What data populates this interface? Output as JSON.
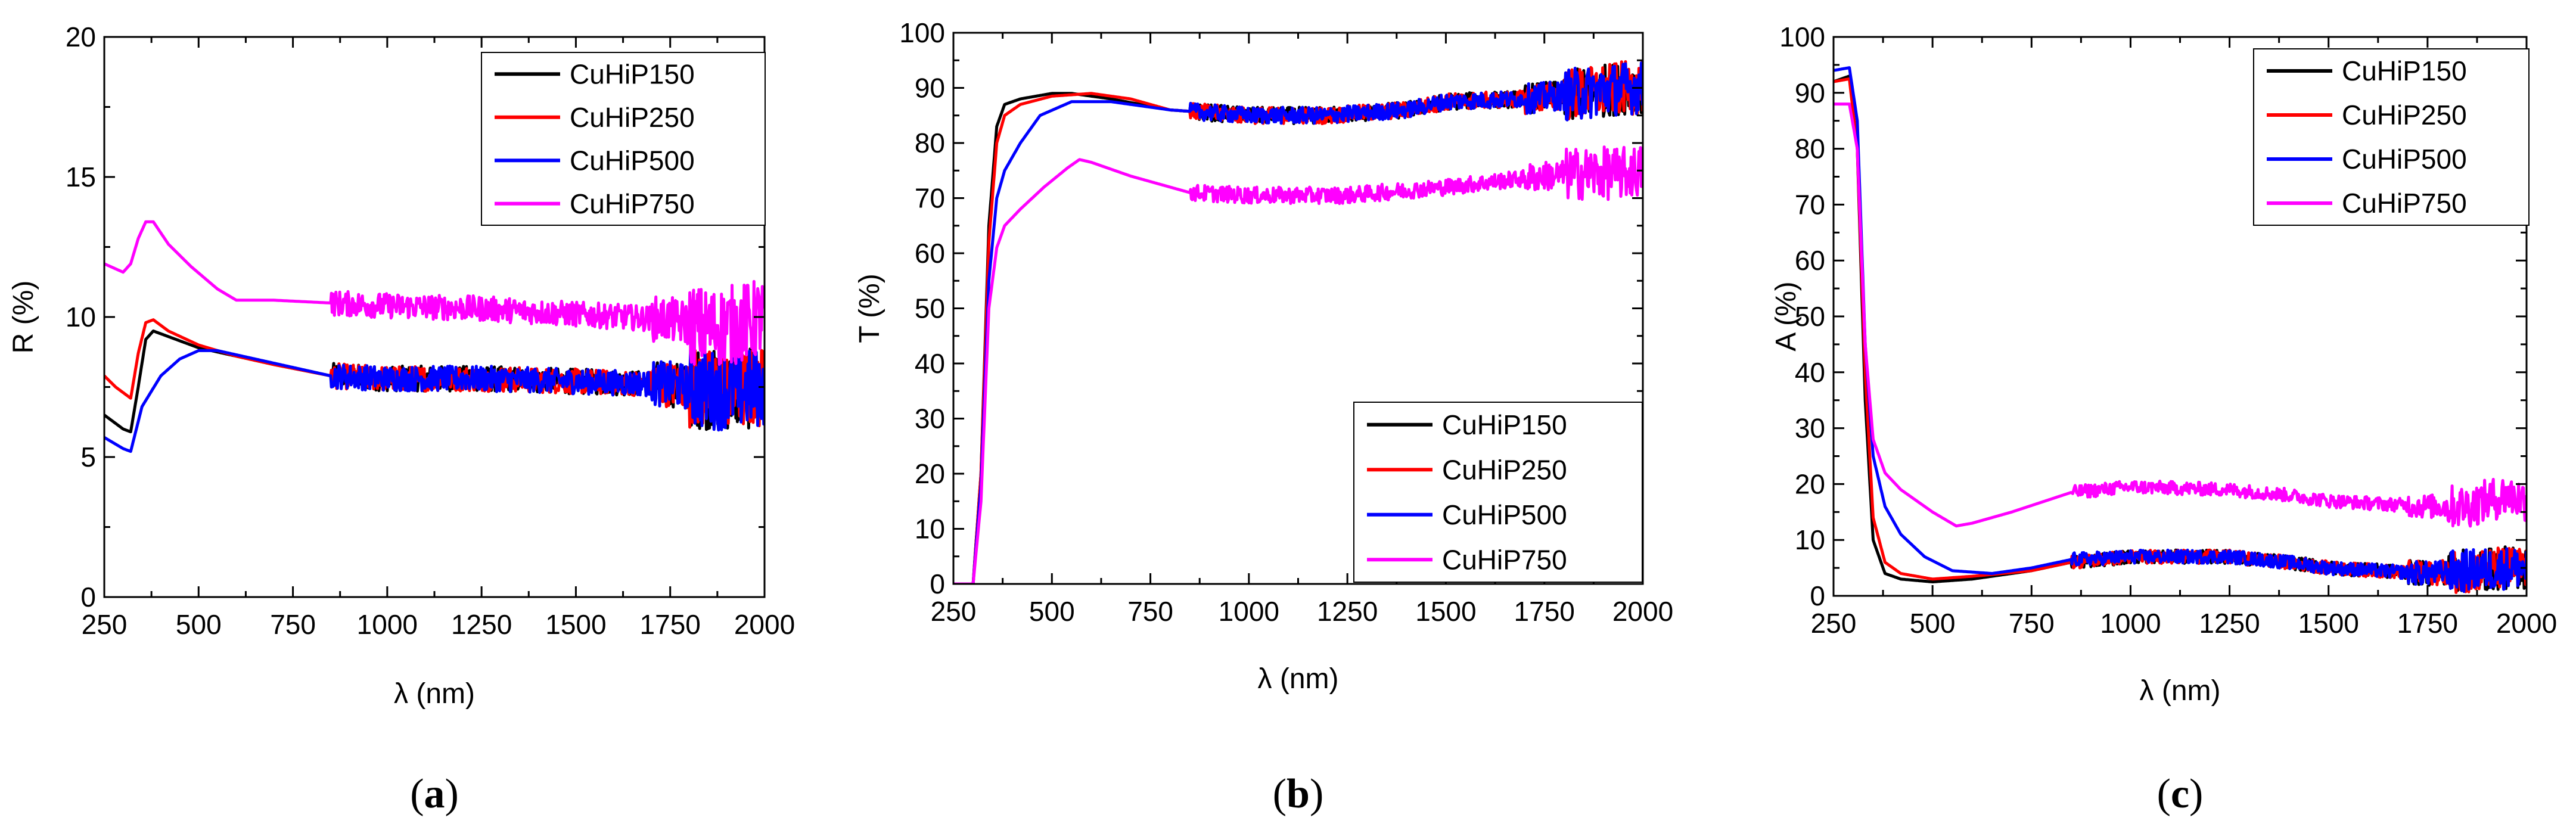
{
  "series_colors": {
    "CuHiP150": "#000000",
    "CuHiP250": "#ff0000",
    "CuHiP500": "#0000ff",
    "CuHiP750": "#ff00ff"
  },
  "chart_data": [
    {
      "id": "a",
      "type": "line",
      "panel_label": "(a)",
      "title": "",
      "xlabel": "λ (nm)",
      "ylabel": "R (%)",
      "xlim": [
        250,
        2000
      ],
      "ylim": [
        0,
        20
      ],
      "xticks": [
        250,
        500,
        750,
        1000,
        1250,
        1500,
        1750,
        2000
      ],
      "yticks": [
        0,
        5,
        10,
        15,
        20
      ],
      "legend_position": "top-right",
      "series": [
        {
          "name": "CuHiP150",
          "noise": 0.45,
          "points": [
            [
              250,
              6.5
            ],
            [
              300,
              6.0
            ],
            [
              320,
              5.9
            ],
            [
              340,
              7.5
            ],
            [
              360,
              9.2
            ],
            [
              380,
              9.5
            ],
            [
              420,
              9.3
            ],
            [
              500,
              8.9
            ],
            [
              600,
              8.6
            ],
            [
              700,
              8.3
            ],
            [
              850,
              7.9
            ],
            [
              1000,
              7.8
            ],
            [
              1250,
              7.8
            ],
            [
              1500,
              7.7
            ],
            [
              1750,
              7.6
            ],
            [
              1850,
              7.4
            ],
            [
              1950,
              7.4
            ],
            [
              2000,
              7.5
            ]
          ]
        },
        {
          "name": "CuHiP250",
          "noise": 0.45,
          "points": [
            [
              250,
              7.9
            ],
            [
              280,
              7.5
            ],
            [
              320,
              7.1
            ],
            [
              340,
              8.7
            ],
            [
              360,
              9.8
            ],
            [
              380,
              9.9
            ],
            [
              420,
              9.5
            ],
            [
              500,
              9.0
            ],
            [
              600,
              8.6
            ],
            [
              700,
              8.3
            ],
            [
              850,
              7.9
            ],
            [
              1000,
              7.8
            ],
            [
              1250,
              7.8
            ],
            [
              1500,
              7.7
            ],
            [
              1750,
              7.6
            ],
            [
              1850,
              7.4
            ],
            [
              1950,
              7.4
            ],
            [
              2000,
              7.5
            ]
          ]
        },
        {
          "name": "CuHiP500",
          "noise": 0.45,
          "points": [
            [
              250,
              5.7
            ],
            [
              300,
              5.3
            ],
            [
              320,
              5.2
            ],
            [
              350,
              6.8
            ],
            [
              400,
              7.9
            ],
            [
              450,
              8.5
            ],
            [
              500,
              8.8
            ],
            [
              550,
              8.8
            ],
            [
              650,
              8.5
            ],
            [
              750,
              8.2
            ],
            [
              850,
              7.9
            ],
            [
              1000,
              7.8
            ],
            [
              1250,
              7.8
            ],
            [
              1500,
              7.7
            ],
            [
              1750,
              7.6
            ],
            [
              1850,
              7.4
            ],
            [
              1950,
              7.4
            ],
            [
              2000,
              7.5
            ]
          ]
        },
        {
          "name": "CuHiP750",
          "noise": 0.45,
          "points": [
            [
              250,
              11.9
            ],
            [
              300,
              11.6
            ],
            [
              320,
              11.9
            ],
            [
              340,
              12.8
            ],
            [
              360,
              13.4
            ],
            [
              380,
              13.4
            ],
            [
              420,
              12.6
            ],
            [
              480,
              11.8
            ],
            [
              550,
              11.0
            ],
            [
              600,
              10.6
            ],
            [
              700,
              10.6
            ],
            [
              850,
              10.5
            ],
            [
              1000,
              10.4
            ],
            [
              1250,
              10.3
            ],
            [
              1500,
              10.1
            ],
            [
              1750,
              9.9
            ],
            [
              1850,
              9.6
            ],
            [
              1950,
              9.8
            ],
            [
              2000,
              10.0
            ]
          ]
        }
      ]
    },
    {
      "id": "b",
      "type": "line",
      "panel_label": "(b)",
      "title": "",
      "xlabel": "λ (nm)",
      "ylabel": "T (%)",
      "xlim": [
        250,
        2000
      ],
      "ylim": [
        0,
        100
      ],
      "xticks": [
        250,
        500,
        750,
        1000,
        1250,
        1500,
        1750,
        2000
      ],
      "yticks": [
        0,
        10,
        20,
        30,
        40,
        50,
        60,
        70,
        80,
        90,
        100
      ],
      "legend_position": "bottom-right",
      "series": [
        {
          "name": "CuHiP150",
          "noise": 1.5,
          "points": [
            [
              250,
              0
            ],
            [
              300,
              0
            ],
            [
              320,
              20
            ],
            [
              340,
              65
            ],
            [
              360,
              83
            ],
            [
              380,
              87
            ],
            [
              420,
              88
            ],
            [
              500,
              89
            ],
            [
              550,
              89
            ],
            [
              650,
              88
            ],
            [
              800,
              86
            ],
            [
              1000,
              85
            ],
            [
              1200,
              85
            ],
            [
              1400,
              86
            ],
            [
              1500,
              87.5
            ],
            [
              1700,
              88
            ],
            [
              1850,
              89
            ],
            [
              1950,
              90
            ],
            [
              2000,
              90
            ]
          ]
        },
        {
          "name": "CuHiP250",
          "noise": 1.5,
          "points": [
            [
              250,
              0
            ],
            [
              300,
              0
            ],
            [
              320,
              20
            ],
            [
              340,
              62
            ],
            [
              360,
              80
            ],
            [
              380,
              85
            ],
            [
              420,
              87
            ],
            [
              500,
              88.5
            ],
            [
              600,
              89
            ],
            [
              700,
              88
            ],
            [
              800,
              86
            ],
            [
              1000,
              85
            ],
            [
              1200,
              85
            ],
            [
              1400,
              86
            ],
            [
              1500,
              87.5
            ],
            [
              1700,
              88
            ],
            [
              1850,
              89
            ],
            [
              1950,
              90
            ],
            [
              2000,
              90
            ]
          ]
        },
        {
          "name": "CuHiP500",
          "noise": 1.5,
          "points": [
            [
              250,
              0
            ],
            [
              300,
              0
            ],
            [
              320,
              18
            ],
            [
              340,
              55
            ],
            [
              360,
              70
            ],
            [
              380,
              75
            ],
            [
              420,
              80
            ],
            [
              470,
              85
            ],
            [
              550,
              87.5
            ],
            [
              650,
              87.5
            ],
            [
              800,
              86
            ],
            [
              1000,
              85
            ],
            [
              1200,
              85
            ],
            [
              1400,
              86
            ],
            [
              1500,
              87.5
            ],
            [
              1700,
              88
            ],
            [
              1850,
              89
            ],
            [
              1950,
              90
            ],
            [
              2000,
              90
            ]
          ]
        },
        {
          "name": "CuHiP750",
          "noise": 1.5,
          "points": [
            [
              250,
              0
            ],
            [
              300,
              0
            ],
            [
              320,
              15
            ],
            [
              340,
              50
            ],
            [
              360,
              61
            ],
            [
              380,
              65
            ],
            [
              420,
              68
            ],
            [
              480,
              72
            ],
            [
              540,
              75.5
            ],
            [
              570,
              77
            ],
            [
              600,
              76.5
            ],
            [
              700,
              74
            ],
            [
              850,
              71
            ],
            [
              1000,
              70.5
            ],
            [
              1250,
              70.5
            ],
            [
              1500,
              72
            ],
            [
              1750,
              74
            ],
            [
              1850,
              74.5
            ],
            [
              1950,
              74.5
            ],
            [
              2000,
              75
            ]
          ]
        }
      ]
    },
    {
      "id": "c",
      "type": "line",
      "panel_label": "(c)",
      "title": "",
      "xlabel": "λ (nm)",
      "ylabel": "A (%)",
      "xlim": [
        250,
        2000
      ],
      "ylim": [
        0,
        100
      ],
      "xticks": [
        250,
        500,
        750,
        1000,
        1250,
        1500,
        1750,
        2000
      ],
      "yticks": [
        0,
        10,
        20,
        30,
        40,
        50,
        60,
        70,
        80,
        90,
        100
      ],
      "legend_position": "top-right",
      "series": [
        {
          "name": "CuHiP150",
          "noise": 1.2,
          "points": [
            [
              250,
              92
            ],
            [
              290,
              93
            ],
            [
              310,
              80
            ],
            [
              330,
              35
            ],
            [
              350,
              10
            ],
            [
              380,
              4
            ],
            [
              420,
              3
            ],
            [
              500,
              2.5
            ],
            [
              600,
              3
            ],
            [
              750,
              4.5
            ],
            [
              850,
              6
            ],
            [
              1000,
              7
            ],
            [
              1250,
              7
            ],
            [
              1400,
              6
            ],
            [
              1500,
              5
            ],
            [
              1750,
              4
            ],
            [
              1850,
              4.5
            ],
            [
              1950,
              5
            ],
            [
              2000,
              5
            ]
          ]
        },
        {
          "name": "CuHiP250",
          "noise": 1.2,
          "points": [
            [
              250,
              92
            ],
            [
              290,
              92.5
            ],
            [
              310,
              80
            ],
            [
              330,
              40
            ],
            [
              350,
              14
            ],
            [
              380,
              6
            ],
            [
              420,
              4
            ],
            [
              500,
              3
            ],
            [
              600,
              3.5
            ],
            [
              750,
              4.5
            ],
            [
              850,
              6
            ],
            [
              1000,
              7
            ],
            [
              1250,
              7
            ],
            [
              1400,
              6
            ],
            [
              1500,
              5
            ],
            [
              1750,
              4
            ],
            [
              1850,
              4.5
            ],
            [
              1950,
              5
            ],
            [
              2000,
              5
            ]
          ]
        },
        {
          "name": "CuHiP500",
          "noise": 1.2,
          "points": [
            [
              250,
              94
            ],
            [
              290,
              94.5
            ],
            [
              310,
              85
            ],
            [
              330,
              45
            ],
            [
              350,
              25
            ],
            [
              380,
              16
            ],
            [
              420,
              11
            ],
            [
              480,
              7
            ],
            [
              550,
              4.5
            ],
            [
              650,
              4
            ],
            [
              750,
              5
            ],
            [
              850,
              6.5
            ],
            [
              1000,
              7
            ],
            [
              1250,
              7
            ],
            [
              1400,
              6
            ],
            [
              1500,
              5
            ],
            [
              1750,
              4
            ],
            [
              1850,
              4.5
            ],
            [
              1950,
              5
            ],
            [
              2000,
              5
            ]
          ]
        },
        {
          "name": "CuHiP750",
          "noise": 1.2,
          "points": [
            [
              250,
              88
            ],
            [
              290,
              88
            ],
            [
              310,
              80
            ],
            [
              330,
              45
            ],
            [
              350,
              28
            ],
            [
              380,
              22
            ],
            [
              420,
              19
            ],
            [
              500,
              15
            ],
            [
              560,
              12.5
            ],
            [
              600,
              13
            ],
            [
              700,
              15
            ],
            [
              850,
              18.5
            ],
            [
              1000,
              19.5
            ],
            [
              1250,
              19
            ],
            [
              1400,
              18
            ],
            [
              1500,
              17
            ],
            [
              1750,
              16
            ],
            [
              1850,
              16
            ],
            [
              1950,
              18
            ],
            [
              2000,
              17
            ]
          ]
        }
      ]
    }
  ]
}
